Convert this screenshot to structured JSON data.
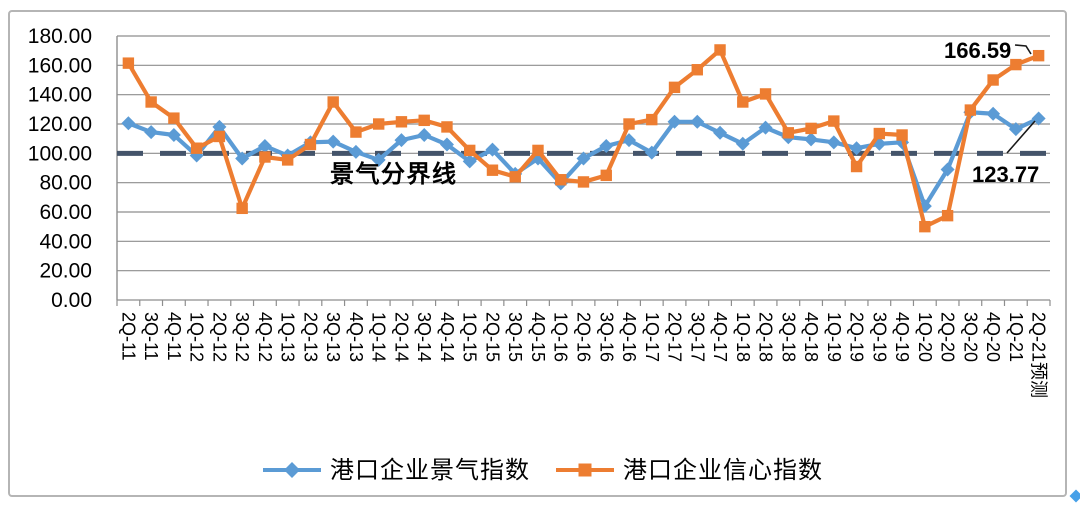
{
  "chart_data": {
    "type": "line",
    "title": "",
    "categories": [
      "2Q-11",
      "3Q-11",
      "4Q-11",
      "1Q-12",
      "2Q-12",
      "3Q-12",
      "4Q-12",
      "1Q-13",
      "2Q-13",
      "3Q-13",
      "4Q-13",
      "1Q-14",
      "2Q-14",
      "3Q-14",
      "4Q-14",
      "1Q-15",
      "2Q-15",
      "3Q-15",
      "4Q-15",
      "1Q-16",
      "2Q-16",
      "3Q-16",
      "4Q-16",
      "1Q-17",
      "2Q-17",
      "3Q-17",
      "4Q-17",
      "1Q-18",
      "2Q-18",
      "3Q-18",
      "4Q-18",
      "1Q-19",
      "2Q-19",
      "3Q-19",
      "4Q-19",
      "1Q-20",
      "2Q-20",
      "3Q-20",
      "4Q-20",
      "1Q-21",
      "2Q-21预测"
    ],
    "series": [
      {
        "name": "港口企业景气指数",
        "color": "#5B9BD5",
        "marker": "diamond",
        "values": [
          120.5,
          114.5,
          112.5,
          98.5,
          118,
          96.5,
          105,
          98.5,
          107.5,
          108,
          101,
          95.5,
          109,
          112.5,
          106,
          94.5,
          102.5,
          86,
          96.5,
          79.5,
          96.5,
          105,
          109,
          100.5,
          121.5,
          121.5,
          114,
          106.5,
          117.5,
          111,
          109.5,
          107.5,
          103.5,
          106.5,
          107.5,
          64,
          89,
          128,
          127,
          116.5,
          123.77
        ]
      },
      {
        "name": "港口企业信心指数",
        "color": "#ED7D31",
        "marker": "square",
        "values": [
          161.5,
          135,
          124,
          103.5,
          111.5,
          62.5,
          97.5,
          95.5,
          106,
          135,
          114.5,
          120,
          121.5,
          122.5,
          118,
          102,
          88.5,
          84,
          102,
          82,
          80.5,
          85,
          120,
          123,
          145,
          157,
          170.5,
          135,
          140.5,
          114,
          117,
          122,
          91,
          113.5,
          112.5,
          50,
          57.5,
          129.5,
          150,
          160.5,
          166.59
        ]
      }
    ],
    "ylim": [
      0,
      180
    ],
    "ytick_step": 20,
    "y_tick_labels": [
      "180.00",
      "160.00",
      "140.00",
      "120.00",
      "100.00",
      "80.00",
      "60.00",
      "40.00",
      "20.00",
      "0.00"
    ],
    "grid": true,
    "legend_position": "bottom",
    "reference_line": {
      "value": 100,
      "label": "景气分界线",
      "color": "#44546A",
      "style": "dashed"
    },
    "annotations": [
      {
        "text": "166.59",
        "series": "港口企业信心指数",
        "point": "2Q-21预测",
        "color": "#ED7D31"
      },
      {
        "text": "123.77",
        "series": "港口企业景气指数",
        "point": "2Q-21预测",
        "color": "#2079C9"
      }
    ],
    "colors": {
      "gridline": "#8e8e8e",
      "axis": "#8e8e8e",
      "leader_line": "#1a1a1a",
      "corner_glyph": "#46a0e8"
    }
  }
}
